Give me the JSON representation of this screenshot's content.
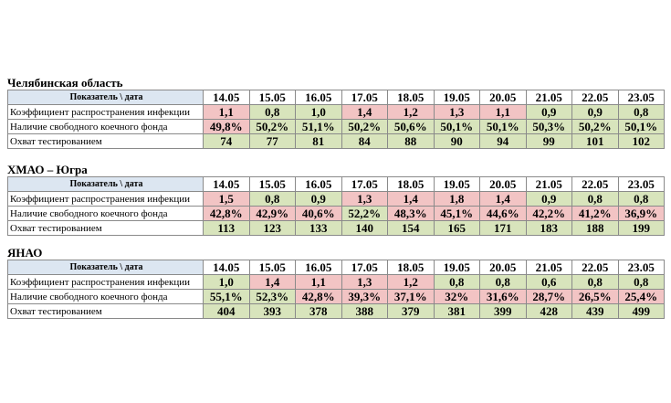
{
  "sections": [
    {
      "title": "Челябинская область",
      "header": {
        "label": "Показатель \\ дата",
        "dates": [
          "14.05",
          "15.05",
          "16.05",
          "17.05",
          "18.05",
          "19.05",
          "20.05",
          "21.05",
          "22.05",
          "23.05"
        ]
      },
      "rows": [
        {
          "label": "Коэффициент распространения инфекции",
          "values": [
            "1,1",
            "0,8",
            "1,0",
            "1,4",
            "1,2",
            "1,3",
            "1,1",
            "0,9",
            "0,9",
            "0,8"
          ],
          "fills": [
            "#f2c4c4",
            "#d8e4bc",
            "#d8e4bc",
            "#f2c4c4",
            "#f2c4c4",
            "#f2c4c4",
            "#f2c4c4",
            "#d8e4bc",
            "#d8e4bc",
            "#d8e4bc"
          ]
        },
        {
          "label": "Наличие свободного коечного фонда",
          "values": [
            "49,8%",
            "50,2%",
            "51,1%",
            "50,2%",
            "50,6%",
            "50,1%",
            "50,1%",
            "50,3%",
            "50,2%",
            "50,1%"
          ],
          "fills": [
            "#f2c4c4",
            "#d8e4bc",
            "#d8e4bc",
            "#d8e4bc",
            "#d8e4bc",
            "#d8e4bc",
            "#d8e4bc",
            "#d8e4bc",
            "#d8e4bc",
            "#d8e4bc"
          ]
        },
        {
          "label": "Охват тестированием",
          "values": [
            "74",
            "77",
            "81",
            "84",
            "88",
            "90",
            "94",
            "99",
            "101",
            "102"
          ],
          "fills": [
            "#d8e4bc",
            "#d8e4bc",
            "#d8e4bc",
            "#d8e4bc",
            "#d8e4bc",
            "#d8e4bc",
            "#d8e4bc",
            "#d8e4bc",
            "#d8e4bc",
            "#d8e4bc"
          ]
        }
      ]
    },
    {
      "title": "ХМАО – Югра",
      "header": {
        "label": "Показатель \\ дата",
        "dates": [
          "14.05",
          "15.05",
          "16.05",
          "17.05",
          "18.05",
          "19.05",
          "20.05",
          "21.05",
          "22.05",
          "23.05"
        ]
      },
      "rows": [
        {
          "label": "Коэффициент распространения инфекции",
          "values": [
            "1,5",
            "0,8",
            "0,9",
            "1,3",
            "1,4",
            "1,8",
            "1,4",
            "0,9",
            "0,8",
            "0,8"
          ],
          "fills": [
            "#f2c4c4",
            "#d8e4bc",
            "#d8e4bc",
            "#f2c4c4",
            "#f2c4c4",
            "#f2c4c4",
            "#f2c4c4",
            "#d8e4bc",
            "#d8e4bc",
            "#d8e4bc"
          ]
        },
        {
          "label": "Наличие свободного коечного фонда",
          "values": [
            "42,8%",
            "42,9%",
            "40,6%",
            "52,2%",
            "48,3%",
            "45,1%",
            "44,6%",
            "42,2%",
            "41,2%",
            "36,9%"
          ],
          "fills": [
            "#f2c4c4",
            "#f2c4c4",
            "#f2c4c4",
            "#d8e4bc",
            "#f2c4c4",
            "#f2c4c4",
            "#f2c4c4",
            "#f2c4c4",
            "#f2c4c4",
            "#f2c4c4"
          ]
        },
        {
          "label": "Охват тестированием",
          "values": [
            "113",
            "123",
            "133",
            "140",
            "154",
            "165",
            "171",
            "183",
            "188",
            "199"
          ],
          "fills": [
            "#d8e4bc",
            "#d8e4bc",
            "#d8e4bc",
            "#d8e4bc",
            "#d8e4bc",
            "#d8e4bc",
            "#d8e4bc",
            "#d8e4bc",
            "#d8e4bc",
            "#d8e4bc"
          ]
        }
      ]
    },
    {
      "title": "ЯНАО",
      "header": {
        "label": "Показатель \\ дата",
        "dates": [
          "14.05",
          "15.05",
          "16.05",
          "17.05",
          "18.05",
          "19.05",
          "20.05",
          "21.05",
          "22.05",
          "23.05"
        ]
      },
      "rows": [
        {
          "label": "Коэффициент распространения инфекции",
          "values": [
            "1,0",
            "1,4",
            "1,1",
            "1,3",
            "1,2",
            "0,8",
            "0,8",
            "0,6",
            "0,8",
            "0,8"
          ],
          "fills": [
            "#d8e4bc",
            "#f2c4c4",
            "#f2c4c4",
            "#f2c4c4",
            "#f2c4c4",
            "#d8e4bc",
            "#d8e4bc",
            "#d8e4bc",
            "#d8e4bc",
            "#d8e4bc"
          ]
        },
        {
          "label": "Наличие свободного коечного фонда",
          "values": [
            "55,1%",
            "52,3%",
            "42,8%",
            "39,3%",
            "37,1%",
            "32%",
            "31,6%",
            "28,7%",
            "26,5%",
            "25,4%"
          ],
          "fills": [
            "#d8e4bc",
            "#d8e4bc",
            "#f2c4c4",
            "#f2c4c4",
            "#f2c4c4",
            "#f2c4c4",
            "#f2c4c4",
            "#f2c4c4",
            "#f2c4c4",
            "#f2c4c4"
          ]
        },
        {
          "label": "Охват тестированием",
          "values": [
            "404",
            "393",
            "378",
            "388",
            "379",
            "381",
            "399",
            "428",
            "439",
            "499"
          ],
          "fills": [
            "#d8e4bc",
            "#d8e4bc",
            "#d8e4bc",
            "#d8e4bc",
            "#d8e4bc",
            "#d8e4bc",
            "#d8e4bc",
            "#d8e4bc",
            "#d8e4bc",
            "#d8e4bc"
          ]
        }
      ]
    }
  ]
}
